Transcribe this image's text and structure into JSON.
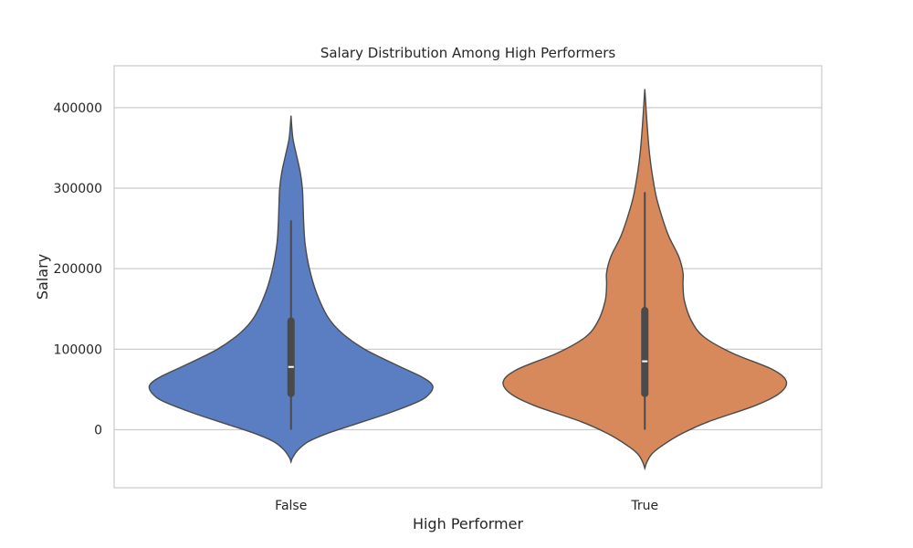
{
  "chart_data": {
    "type": "violin",
    "title": "Salary Distribution Among High Performers",
    "xlabel": "High Performer",
    "ylabel": "Salary",
    "categories": [
      "False",
      "True"
    ],
    "ylim": [
      -72000,
      452000
    ],
    "yticks": [
      0,
      100000,
      200000,
      300000,
      400000
    ],
    "ytick_labels": [
      "0",
      "100000",
      "200000",
      "300000",
      "400000"
    ],
    "grid": true,
    "series": [
      {
        "category": "False",
        "color": "#5b7ec2",
        "min": 0,
        "q1": 45000,
        "median": 78000,
        "q3": 135000,
        "max": 260000,
        "kde_min": -40000,
        "kde_max": 390000,
        "density": [
          [
            -40000,
            0.0
          ],
          [
            -35000,
            0.01
          ],
          [
            -25000,
            0.05
          ],
          [
            -15000,
            0.12
          ],
          [
            -5000,
            0.25
          ],
          [
            5000,
            0.42
          ],
          [
            20000,
            0.68
          ],
          [
            35000,
            0.9
          ],
          [
            45000,
            0.98
          ],
          [
            55000,
            1.0
          ],
          [
            65000,
            0.93
          ],
          [
            80000,
            0.75
          ],
          [
            100000,
            0.52
          ],
          [
            120000,
            0.36
          ],
          [
            140000,
            0.26
          ],
          [
            170000,
            0.18
          ],
          [
            200000,
            0.13
          ],
          [
            230000,
            0.1
          ],
          [
            255000,
            0.09
          ],
          [
            280000,
            0.085
          ],
          [
            300000,
            0.08
          ],
          [
            320000,
            0.065
          ],
          [
            340000,
            0.04
          ],
          [
            360000,
            0.015
          ],
          [
            375000,
            0.006
          ],
          [
            390000,
            0.0
          ]
        ]
      },
      {
        "category": "True",
        "color": "#d8895c",
        "min": 0,
        "q1": 45000,
        "median": 85000,
        "q3": 148000,
        "max": 295000,
        "kde_min": -48000,
        "kde_max": 423000,
        "density": [
          [
            -48000,
            0.0
          ],
          [
            -40000,
            0.015
          ],
          [
            -30000,
            0.05
          ],
          [
            -20000,
            0.12
          ],
          [
            -5000,
            0.26
          ],
          [
            10000,
            0.45
          ],
          [
            30000,
            0.78
          ],
          [
            45000,
            0.95
          ],
          [
            60000,
            1.0
          ],
          [
            75000,
            0.9
          ],
          [
            95000,
            0.62
          ],
          [
            115000,
            0.42
          ],
          [
            135000,
            0.33
          ],
          [
            160000,
            0.28
          ],
          [
            180000,
            0.27
          ],
          [
            195000,
            0.27
          ],
          [
            215000,
            0.24
          ],
          [
            240000,
            0.17
          ],
          [
            265000,
            0.12
          ],
          [
            290000,
            0.08
          ],
          [
            320000,
            0.05
          ],
          [
            345000,
            0.032
          ],
          [
            370000,
            0.02
          ],
          [
            395000,
            0.01
          ],
          [
            415000,
            0.003
          ],
          [
            423000,
            0.0
          ]
        ]
      }
    ]
  }
}
